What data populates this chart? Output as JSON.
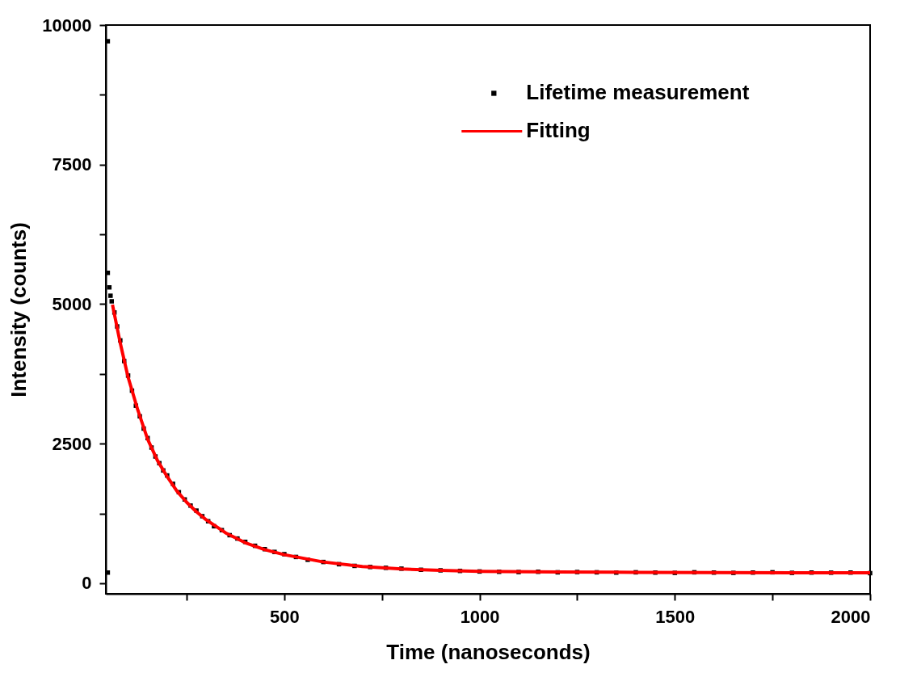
{
  "chart_data": {
    "type": "scatter",
    "xlabel": "Time (nanoseconds)",
    "ylabel": "Intensity (counts)",
    "xlim": [
      43,
      2000
    ],
    "ylim": [
      -190,
      10000
    ],
    "xticks": [
      {
        "value": 250,
        "label": null
      },
      500,
      {
        "value": 750,
        "label": null
      },
      1000,
      {
        "value": 1250,
        "label": null
      },
      1500,
      {
        "value": 1750,
        "label": null
      },
      2000
    ],
    "yticks": [
      0,
      {
        "value": 1250,
        "label": null
      },
      2500,
      {
        "value": 3750,
        "label": null
      },
      5000,
      {
        "value": 6250,
        "label": null
      },
      7500,
      {
        "value": 8750,
        "label": null
      },
      10000
    ],
    "grid": false,
    "legend": "top right",
    "series": [
      {
        "name": "Lifetime measurement",
        "marker": "square",
        "color": "#000000",
        "x": [
          48,
          48,
          48,
          52,
          55,
          58,
          65,
          72,
          80,
          90,
          100,
          110,
          120,
          130,
          140,
          150,
          160,
          170,
          180,
          190,
          200,
          215,
          230,
          245,
          260,
          275,
          290,
          305,
          320,
          340,
          360,
          380,
          400,
          425,
          450,
          475,
          500,
          530,
          560,
          600,
          640,
          680,
          720,
          760,
          800,
          850,
          900,
          950,
          1000,
          1050,
          1100,
          1150,
          1200,
          1250,
          1300,
          1350,
          1400,
          1450,
          1500,
          1550,
          1600,
          1650,
          1700,
          1750,
          1800,
          1850,
          1900,
          1950,
          2000
        ],
        "values": [
          9710,
          5560,
          190,
          5300,
          5150,
          5050,
          4850,
          4600,
          4350,
          3980,
          3720,
          3450,
          3180,
          2990,
          2770,
          2600,
          2430,
          2270,
          2150,
          2020,
          1930,
          1780,
          1630,
          1500,
          1390,
          1300,
          1200,
          1110,
          1020,
          950,
          860,
          800,
          740,
          670,
          610,
          560,
          520,
          470,
          420,
          380,
          340,
          310,
          290,
          275,
          260,
          240,
          230,
          220,
          210,
          205,
          200,
          205,
          195,
          200,
          195,
          190,
          195,
          190,
          185,
          195,
          190,
          185,
          190,
          195,
          185,
          190,
          188,
          190,
          180
        ]
      },
      {
        "name": "Fitting",
        "type": "line",
        "line_style": "solid",
        "color": "#ff0000",
        "x": [
          60,
          80,
          100,
          125,
          150,
          175,
          200,
          225,
          250,
          275,
          300,
          350,
          400,
          450,
          500,
          600,
          700,
          800,
          900,
          1000,
          1200,
          1400,
          1600,
          1800,
          2000
        ],
        "values": [
          4990,
          4300,
          3690,
          3100,
          2580,
          2200,
          1910,
          1650,
          1450,
          1280,
          1135,
          900,
          725,
          600,
          510,
          380,
          300,
          255,
          230,
          210,
          200,
          195,
          190,
          188,
          188
        ]
      }
    ]
  }
}
